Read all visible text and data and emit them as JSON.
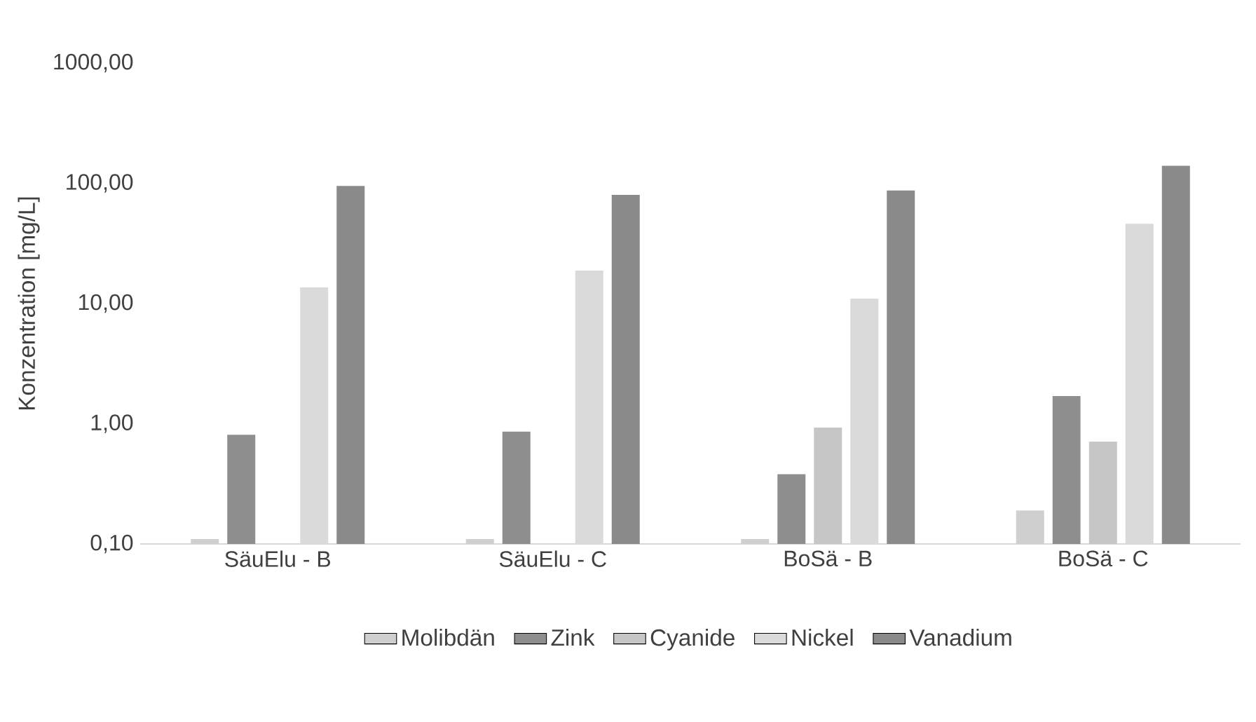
{
  "chart_data": {
    "type": "bar",
    "ylabel": "Konzentration [mg/L]",
    "log": "y",
    "legend": "bottom",
    "categories": [
      "SäuElu - B",
      "SäuElu - C",
      "BoSä - B",
      "BoSä - C"
    ],
    "ylim": [
      0.1,
      1000
    ],
    "yticks": [
      {
        "value": 0.1,
        "label": "0,10"
      },
      {
        "value": 1,
        "label": "1,00"
      },
      {
        "value": 10,
        "label": "10,00"
      },
      {
        "value": 100,
        "label": "100,00"
      },
      {
        "value": 1000,
        "label": "1000,00"
      }
    ],
    "series": [
      {
        "name": "Molibdän",
        "color": "#cfcfcf",
        "values": [
          0.11,
          0.11,
          0.11,
          0.19
        ]
      },
      {
        "name": "Zink",
        "color": "#8e8e8e",
        "values": [
          0.81,
          0.86,
          0.38,
          1.7
        ]
      },
      {
        "name": "Cyanide",
        "color": "#c6c6c6",
        "values": [
          null,
          null,
          0.93,
          0.71
        ]
      },
      {
        "name": "Nickel",
        "color": "#dadada",
        "values": [
          13.6,
          18.8,
          11,
          46
        ]
      },
      {
        "name": "Vanadium",
        "color": "#8a8a8a",
        "values": [
          95,
          80,
          87,
          140
        ]
      }
    ]
  }
}
